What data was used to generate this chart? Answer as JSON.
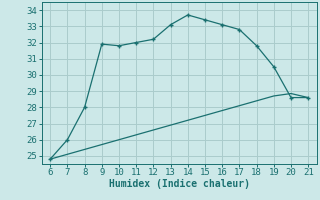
{
  "title": "",
  "xlabel": "Humidex (Indice chaleur)",
  "ylabel": "",
  "bg_color": "#cce8e8",
  "line_color": "#1a7070",
  "grid_color": "#aacccc",
  "x_main": [
    6,
    7,
    8,
    9,
    10,
    11,
    12,
    13,
    14,
    15,
    16,
    17,
    18,
    19,
    20,
    21
  ],
  "y_main": [
    24.8,
    26.0,
    28.0,
    31.9,
    31.8,
    32.0,
    32.2,
    33.1,
    33.7,
    33.4,
    33.1,
    32.8,
    31.8,
    30.5,
    28.6,
    28.6
  ],
  "x_line2": [
    6,
    7,
    8,
    9,
    10,
    11,
    12,
    13,
    14,
    15,
    16,
    17,
    18,
    19,
    20,
    21
  ],
  "y_line2": [
    24.8,
    25.1,
    25.4,
    25.7,
    26.0,
    26.3,
    26.6,
    26.9,
    27.2,
    27.5,
    27.8,
    28.1,
    28.4,
    28.7,
    28.85,
    28.6
  ],
  "xlim": [
    5.5,
    21.5
  ],
  "ylim": [
    24.5,
    34.5
  ],
  "yticks": [
    25,
    26,
    27,
    28,
    29,
    30,
    31,
    32,
    33,
    34
  ],
  "xticks": [
    6,
    7,
    8,
    9,
    10,
    11,
    12,
    13,
    14,
    15,
    16,
    17,
    18,
    19,
    20,
    21
  ],
  "fontsize_label": 7,
  "fontsize_tick": 6.5,
  "marker_size": 3.5,
  "linewidth": 0.9
}
